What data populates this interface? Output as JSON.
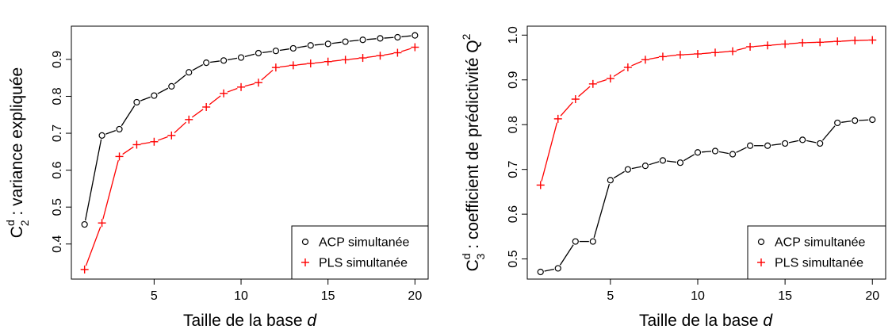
{
  "chart_data": [
    {
      "type": "line",
      "xlabel_text": "Taille de la base ",
      "xlabel_var": "d",
      "ylabel_main": "C",
      "ylabel_sup": "d",
      "ylabel_sub": "2",
      "ylabel_rest": " : variance expliquée",
      "x": [
        1,
        2,
        3,
        4,
        5,
        6,
        7,
        8,
        9,
        10,
        11,
        12,
        13,
        14,
        15,
        16,
        17,
        18,
        19,
        20
      ],
      "xlim": [
        0.24,
        20.76
      ],
      "ylim": [
        0.305,
        0.99
      ],
      "xticks": [
        "5",
        "10",
        "15",
        "20"
      ],
      "yticks": [
        "0.4",
        "0.5",
        "0.6",
        "0.7",
        "0.8",
        "0.9"
      ],
      "legend_position": "bottom-right",
      "series": [
        {
          "name": "ACP simultanée",
          "marker": "circle",
          "color": "#000000",
          "values": [
            0.453,
            0.694,
            0.711,
            0.784,
            0.802,
            0.827,
            0.865,
            0.891,
            0.897,
            0.905,
            0.917,
            0.923,
            0.93,
            0.938,
            0.942,
            0.948,
            0.953,
            0.957,
            0.96,
            0.965
          ]
        },
        {
          "name": "PLS simultanée",
          "marker": "plus",
          "color": "#ff0000",
          "values": [
            0.331,
            0.457,
            0.637,
            0.669,
            0.677,
            0.694,
            0.737,
            0.771,
            0.808,
            0.825,
            0.837,
            0.878,
            0.884,
            0.889,
            0.894,
            0.899,
            0.904,
            0.91,
            0.918,
            0.933
          ]
        }
      ]
    },
    {
      "type": "line",
      "xlabel_text": "Taille de la base ",
      "xlabel_var": "d",
      "ylabel_main": "C",
      "ylabel_sup": "d",
      "ylabel_sub": "3",
      "ylabel_rest": " : coefficient de prédictivité  Q",
      "ylabel_sup2": "2",
      "x": [
        1,
        2,
        3,
        4,
        5,
        6,
        7,
        8,
        9,
        10,
        11,
        12,
        13,
        14,
        15,
        16,
        17,
        18,
        19,
        20
      ],
      "xlim": [
        0.24,
        20.76
      ],
      "ylim": [
        0.455,
        1.02
      ],
      "xticks": [
        "5",
        "10",
        "15",
        "20"
      ],
      "yticks": [
        "0.5",
        "0.6",
        "0.7",
        "0.8",
        "0.9",
        "1.0"
      ],
      "legend_position": "bottom-right",
      "series": [
        {
          "name": "ACP simultanée",
          "marker": "circle",
          "color": "#000000",
          "values": [
            0.471,
            0.479,
            0.539,
            0.539,
            0.676,
            0.7,
            0.708,
            0.72,
            0.715,
            0.738,
            0.741,
            0.734,
            0.753,
            0.753,
            0.758,
            0.766,
            0.758,
            0.804,
            0.809,
            0.811
          ]
        },
        {
          "name": "PLS simultanée",
          "marker": "plus",
          "color": "#ff0000",
          "values": [
            0.665,
            0.813,
            0.857,
            0.891,
            0.903,
            0.928,
            0.945,
            0.952,
            0.956,
            0.958,
            0.961,
            0.964,
            0.974,
            0.977,
            0.98,
            0.983,
            0.984,
            0.986,
            0.988,
            0.989
          ]
        }
      ]
    }
  ]
}
